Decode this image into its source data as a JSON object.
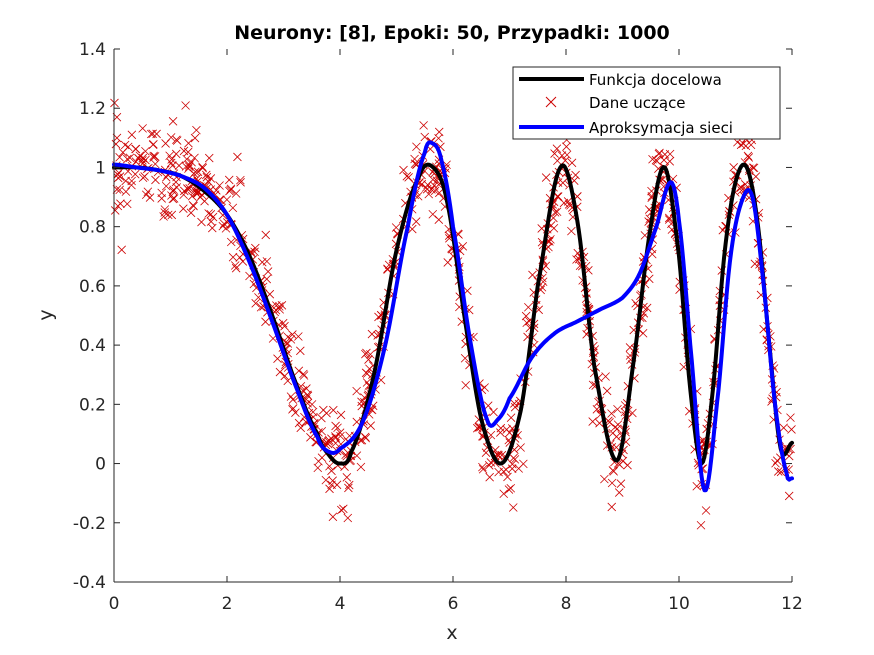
{
  "chart_data": {
    "type": "line",
    "title": "Neurony: [8], Epoki: 50, Przypadki: 1000",
    "xlabel": "x",
    "ylabel": "y",
    "xlim": [
      0,
      12
    ],
    "ylim": [
      -0.4,
      1.4
    ],
    "x_ticks": [
      "0",
      "2",
      "4",
      "6",
      "8",
      "10",
      "12"
    ],
    "y_ticks": [
      "-0.4",
      "-0.2",
      "0",
      "0.2",
      "0.4",
      "0.6",
      "0.8",
      "1",
      "1.2",
      "1.4"
    ],
    "grid": false,
    "legend_position": "top-right",
    "legend": [
      {
        "label": "Funkcja docelowa",
        "color": "#000000",
        "style": "line"
      },
      {
        "label": "Dane uczące",
        "color": "#cc0000",
        "style": "x-marker"
      },
      {
        "label": "Aproksymacja sieci",
        "color": "#0000ff",
        "style": "line"
      }
    ],
    "series": [
      {
        "name": "Funkcja docelowa",
        "color": "#000000",
        "x": [
          0,
          0.4,
          0.8,
          1.2,
          1.6,
          2.0,
          2.4,
          2.8,
          3.2,
          3.6,
          3.8,
          4.0,
          4.2,
          4.6,
          5.0,
          5.4,
          5.65,
          5.9,
          6.2,
          6.5,
          6.85,
          7.2,
          7.5,
          7.9,
          8.2,
          8.5,
          8.9,
          9.2,
          9.5,
          9.75,
          10.0,
          10.2,
          10.4,
          10.6,
          10.8,
          11.0,
          11.2,
          11.4,
          11.6,
          11.8,
          12.0
        ],
        "y": [
          1.0,
          1.0,
          0.99,
          0.97,
          0.92,
          0.84,
          0.7,
          0.5,
          0.28,
          0.1,
          0.03,
          0.0,
          0.04,
          0.3,
          0.72,
          0.97,
          1.0,
          0.88,
          0.5,
          0.15,
          0.0,
          0.18,
          0.6,
          1.0,
          0.82,
          0.33,
          0.01,
          0.35,
          0.8,
          1.0,
          0.7,
          0.25,
          0.0,
          0.25,
          0.7,
          0.95,
          1.0,
          0.8,
          0.4,
          0.05,
          0.07
        ]
      },
      {
        "name": "Aproksymacja sieci",
        "color": "#0000ff",
        "x": [
          0,
          0.4,
          0.8,
          1.2,
          1.6,
          2.0,
          2.4,
          2.8,
          3.2,
          3.6,
          3.8,
          4.0,
          4.4,
          4.8,
          5.2,
          5.5,
          5.65,
          5.8,
          6.0,
          6.3,
          6.6,
          6.8,
          7.0,
          7.4,
          7.8,
          8.2,
          8.6,
          9.0,
          9.3,
          9.6,
          9.85,
          10.0,
          10.2,
          10.45,
          10.7,
          10.9,
          11.1,
          11.3,
          11.5,
          11.7,
          11.9,
          12.0
        ],
        "y": [
          1.01,
          1.0,
          0.99,
          0.97,
          0.93,
          0.84,
          0.68,
          0.48,
          0.27,
          0.09,
          0.04,
          0.05,
          0.14,
          0.4,
          0.8,
          1.05,
          1.08,
          1.02,
          0.8,
          0.42,
          0.15,
          0.15,
          0.22,
          0.36,
          0.44,
          0.48,
          0.52,
          0.56,
          0.64,
          0.8,
          0.95,
          0.82,
          0.4,
          -0.09,
          0.25,
          0.68,
          0.88,
          0.9,
          0.6,
          0.2,
          -0.03,
          -0.05
        ]
      }
    ],
    "scatter": {
      "name": "Dane uczące",
      "color": "#cc0000",
      "marker": "x",
      "count": 1000,
      "noise": "approx. ±0.2 around target function"
    }
  }
}
